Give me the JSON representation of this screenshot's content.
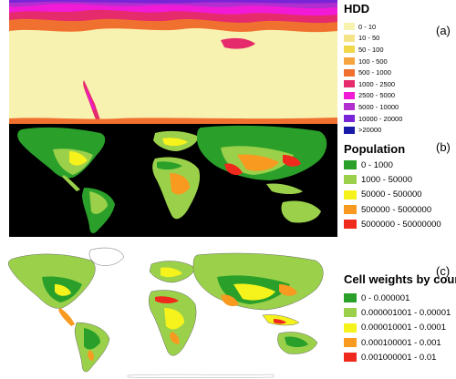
{
  "panels": {
    "a": {
      "label": "(a)",
      "title": "HDD",
      "legend": [
        {
          "label": "0 - 10",
          "color": "#f8f2b0"
        },
        {
          "label": "10 - 50",
          "color": "#f5e487"
        },
        {
          "label": "50 - 100",
          "color": "#f1d74a"
        },
        {
          "label": "100 - 500",
          "color": "#f4a540"
        },
        {
          "label": "500 - 1000",
          "color": "#f07030"
        },
        {
          "label": "1000 - 2500",
          "color": "#e52b6b"
        },
        {
          "label": "2500 - 5000",
          "color": "#f01ad7"
        },
        {
          "label": "5000 - 10000",
          "color": "#b12fcf"
        },
        {
          "label": "10000 - 20000",
          "color": "#7a24d8"
        },
        {
          "label": ">20000",
          "color": "#1a1aa8"
        }
      ]
    },
    "b": {
      "label": "(b)",
      "title": "Population",
      "legend": [
        {
          "label": "0 - 1000",
          "color": "#2aa02a"
        },
        {
          "label": "1000 - 50000",
          "color": "#9bd14a"
        },
        {
          "label": "50000 - 500000",
          "color": "#f6f21c"
        },
        {
          "label": "500000 - 5000000",
          "color": "#f79a1f"
        },
        {
          "label": "5000000 - 50000000",
          "color": "#ef2a1c"
        }
      ]
    },
    "c": {
      "label": "(c)",
      "title": "Cell weights by country",
      "legend": [
        {
          "label": "0 - 0.000001",
          "color": "#2aa02a"
        },
        {
          "label": "0.000001001 - 0.00001",
          "color": "#9bd14a"
        },
        {
          "label": "0.000010001 - 0.0001",
          "color": "#f6f21c"
        },
        {
          "label": "0.000100001 - 0.001",
          "color": "#f79a1f"
        },
        {
          "label": "0.001000001 - 0.01",
          "color": "#ef2a1c"
        }
      ]
    }
  }
}
